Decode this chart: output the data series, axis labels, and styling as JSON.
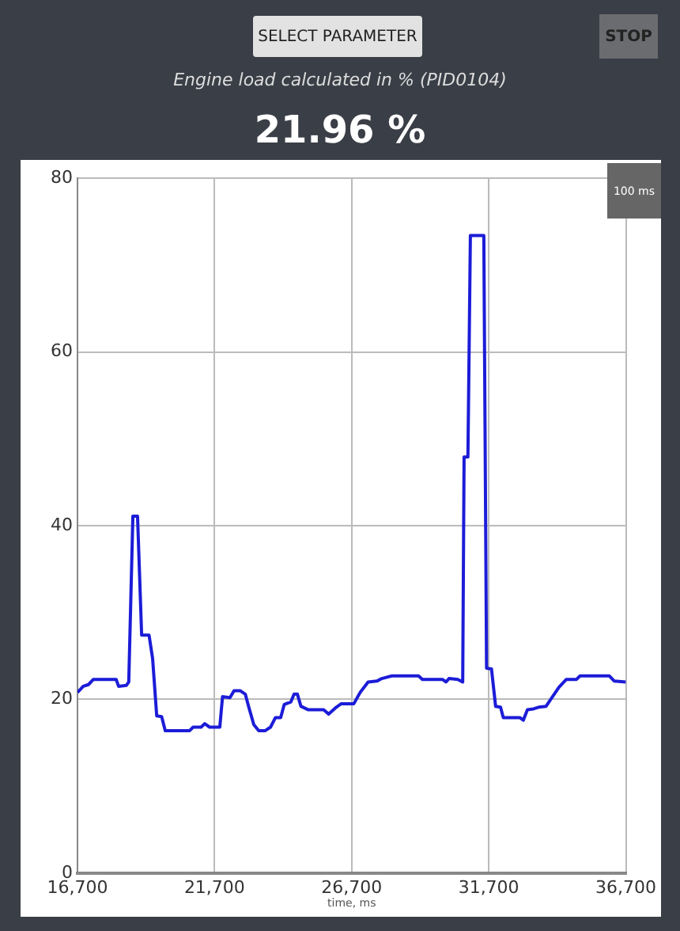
{
  "chart_data": {
    "type": "line",
    "title": "Engine load calculated in % (PID0104)",
    "xlabel": "time, ms",
    "annotations": [
      "SELECT PARAMETER",
      "STOP",
      "21.96 %",
      "100 ms"
    ],
    "x": [
      16700,
      16910,
      17100,
      17280,
      18110,
      18200,
      18480,
      18570,
      18720,
      18890,
      19040,
      19310,
      19440,
      19590,
      19770,
      19900,
      20790,
      20920,
      21210,
      21340,
      21520,
      21890,
      21990,
      22260,
      22410,
      22630,
      22820,
      22940,
      23130,
      23310,
      23550,
      23740,
      23920,
      24110,
      24240,
      24480,
      24600,
      24720,
      24850,
      25120,
      25680,
      25860,
      26140,
      26320,
      26780,
      27010,
      27300,
      27620,
      27800,
      28170,
      29140,
      29280,
      30010,
      30140,
      30250,
      30570,
      30750,
      30800,
      30940,
      31030,
      31520,
      31620,
      31800,
      31950,
      32130,
      32230,
      32830,
      32960,
      33110,
      33330,
      33520,
      33790,
      33980,
      34260,
      34530,
      34900,
      35030,
      36100,
      36280,
      36700
    ],
    "series": [
      {
        "color": "#1c1cd8",
        "values": [
          20.8,
          21.5,
          21.7,
          22.3,
          22.3,
          21.5,
          21.6,
          22.0,
          41.1,
          41.1,
          27.4,
          27.4,
          24.7,
          18.1,
          18.0,
          16.4,
          16.4,
          16.8,
          16.8,
          17.2,
          16.8,
          16.8,
          20.3,
          20.2,
          21.0,
          21.0,
          20.6,
          19.2,
          17.1,
          16.4,
          16.4,
          16.8,
          17.9,
          17.9,
          19.4,
          19.7,
          20.6,
          20.6,
          19.2,
          18.8,
          18.8,
          18.3,
          19.1,
          19.5,
          19.5,
          20.8,
          22.0,
          22.1,
          22.4,
          22.7,
          22.7,
          22.3,
          22.3,
          22.0,
          22.4,
          22.3,
          22.0,
          47.9,
          47.9,
          73.4,
          73.4,
          23.6,
          23.5,
          19.2,
          19.1,
          17.9,
          17.9,
          17.6,
          18.8,
          18.9,
          19.1,
          19.2,
          20.1,
          21.4,
          22.3,
          22.3,
          22.7,
          22.7,
          22.1,
          22.0
        ]
      }
    ],
    "xlim": [
      16700,
      36700
    ],
    "xticks": [
      {
        "value": 16700,
        "label": "16,700"
      },
      {
        "value": 21700,
        "label": "21,700"
      },
      {
        "value": 26700,
        "label": "26,700"
      },
      {
        "value": 31700,
        "label": "31,700"
      },
      {
        "value": 36700,
        "label": "36,700"
      }
    ],
    "ylim": [
      0,
      80
    ],
    "yticks": [
      0,
      20,
      40,
      60,
      80
    ],
    "grid": true,
    "legend": false,
    "marker": "none",
    "line_style": "solid"
  }
}
